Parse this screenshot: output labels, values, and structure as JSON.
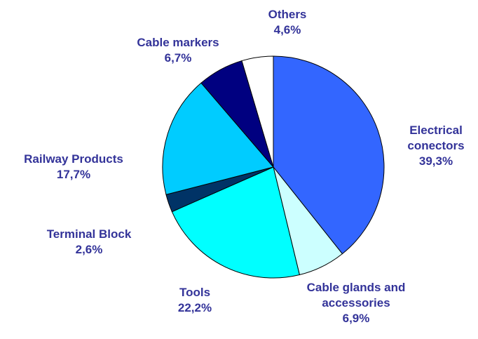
{
  "chart_data": {
    "type": "pie",
    "categories": [
      "Electrical conectors",
      "Cable glands and accessories",
      "Tools",
      "Terminal Block",
      "Railway Products",
      "Cable markers",
      "Others"
    ],
    "values": [
      39.3,
      6.9,
      22.2,
      2.6,
      17.7,
      6.7,
      4.6
    ],
    "value_labels": [
      "39,3%",
      "6,9%",
      "22,2%",
      "2,6%",
      "17,7%",
      "6,7%",
      "4,6%"
    ],
    "colors": [
      "#3366ff",
      "#ccffff",
      "#00ffff",
      "#003366",
      "#00ccff",
      "#000080",
      "#ffffff"
    ]
  }
}
